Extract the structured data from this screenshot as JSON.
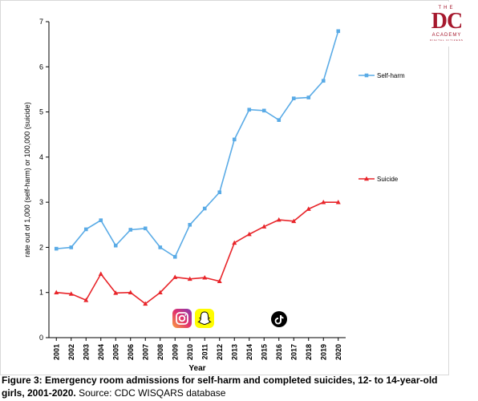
{
  "chart_data": {
    "type": "line",
    "x": [
      "2001",
      "2002",
      "2003",
      "2004",
      "2005",
      "2006",
      "2007",
      "2008",
      "2009",
      "2010",
      "2011",
      "2012",
      "2013",
      "2014",
      "2015",
      "2016",
      "2017",
      "2018",
      "2019",
      "2020"
    ],
    "series": [
      {
        "name": "Self-harm",
        "color": "#5aabe6",
        "marker": "square",
        "values": [
          1.97,
          2.0,
          2.4,
          2.6,
          2.04,
          2.39,
          2.42,
          2.0,
          1.79,
          2.5,
          2.86,
          3.22,
          4.39,
          5.05,
          5.03,
          4.82,
          5.3,
          5.32,
          5.69,
          6.79
        ]
      },
      {
        "name": "Suicide",
        "color": "#e8252a",
        "marker": "triangle",
        "values": [
          1.0,
          0.97,
          0.83,
          1.41,
          0.99,
          1.0,
          0.75,
          1.0,
          1.34,
          1.3,
          1.33,
          1.25,
          2.1,
          2.29,
          2.46,
          2.61,
          2.58,
          2.85,
          3.0,
          3.0
        ]
      }
    ],
    "yticks": [
      "0",
      "1",
      "2",
      "3",
      "4",
      "5",
      "6",
      "7"
    ],
    "ylim": [
      0,
      7
    ],
    "xlabel": "Year",
    "ylabel": "rate out of 1,000 (self-harm) or 100,000 (suicide)",
    "legend": "right",
    "grid": false
  },
  "caption": {
    "bold": "Figure 3: Emergency room admissions for self-harm and completed suicides, 12- to 14-year-old girls, 2001-2020.",
    "source": " Source: CDC WISQARS database"
  },
  "logo": {
    "the": "THE",
    "dc": "DC",
    "academy": "ACADEMY",
    "tagline": "DIGITAL CITIZENS"
  },
  "icons": [
    "instagram-icon",
    "snapchat-icon",
    "tiktok-icon"
  ]
}
